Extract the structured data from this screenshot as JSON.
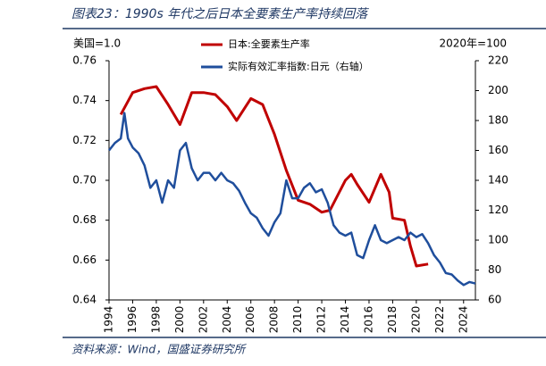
{
  "chart_data": {
    "type": "line",
    "title": "图表23：1990s 年代之后日本全要素生产率持续回落",
    "source": "资料来源：Wind，国盛证券研究所",
    "y_label": "美国=1.0",
    "y2_label": "2020年=100",
    "xlim": [
      1994,
      2025
    ],
    "xticks": [
      1994,
      1996,
      1998,
      2000,
      2002,
      2004,
      2006,
      2008,
      2010,
      2012,
      2014,
      2016,
      2018,
      2020,
      2022,
      2024
    ],
    "ylim": [
      0.64,
      0.76
    ],
    "yticks": [
      {
        "value": 0.64,
        "label": "0.64"
      },
      {
        "value": 0.66,
        "label": "0.66"
      },
      {
        "value": 0.68,
        "label": "0.68"
      },
      {
        "value": 0.7,
        "label": "0.70"
      },
      {
        "value": 0.72,
        "label": "0.72"
      },
      {
        "value": 0.74,
        "label": "0.74"
      },
      {
        "value": 0.76,
        "label": "0.76"
      }
    ],
    "y2lim": [
      60,
      220
    ],
    "y2ticks": [
      60,
      80,
      100,
      120,
      140,
      160,
      180,
      200,
      220
    ],
    "series": [
      {
        "name": "日本:全要素生产率",
        "color": "#c00000",
        "x": [
          1995,
          1996,
          1997,
          1998,
          1999,
          2000,
          2001,
          2002,
          2003,
          2004,
          2004.8,
          2006,
          2007,
          2008,
          2009,
          2010,
          2011,
          2012,
          2012.7,
          2014,
          2014.5,
          2015,
          2016,
          2017,
          2017.7,
          2018,
          2019,
          2019.5,
          2020,
          2021
        ],
        "values": [
          0.733,
          0.744,
          0.746,
          0.747,
          0.738,
          0.728,
          0.744,
          0.744,
          0.743,
          0.737,
          0.73,
          0.741,
          0.738,
          0.723,
          0.705,
          0.69,
          0.688,
          0.684,
          0.685,
          0.7,
          0.703,
          0.698,
          0.689,
          0.703,
          0.694,
          0.681,
          0.68,
          0.667,
          0.657,
          0.658
        ]
      },
      {
        "name": "实际有效汇率指数:日元（右轴）",
        "color": "#1f4e9c",
        "axis": "y2",
        "x": [
          1994,
          1994.5,
          1995,
          1995.3,
          1995.6,
          1996,
          1996.5,
          1997,
          1997.5,
          1998,
          1998.5,
          1999,
          1999.5,
          2000,
          2000.5,
          2001,
          2001.5,
          2002,
          2002.5,
          2003,
          2003.5,
          2004,
          2004.5,
          2005,
          2005.5,
          2006,
          2006.5,
          2007,
          2007.5,
          2008,
          2008.5,
          2009,
          2009.5,
          2010,
          2010.5,
          2011,
          2011.5,
          2012,
          2012.5,
          2013,
          2013.5,
          2014,
          2014.5,
          2015,
          2015.5,
          2016,
          2016.5,
          2017,
          2017.5,
          2018,
          2018.5,
          2019,
          2019.5,
          2020,
          2020.5,
          2021,
          2021.5,
          2022,
          2022.5,
          2023,
          2023.5,
          2024,
          2024.5,
          2025
        ],
        "values": [
          160,
          165,
          168,
          185,
          168,
          162,
          158,
          150,
          135,
          140,
          125,
          140,
          135,
          160,
          165,
          148,
          140,
          145,
          145,
          140,
          145,
          140,
          138,
          133,
          125,
          118,
          115,
          108,
          103,
          112,
          118,
          140,
          128,
          128,
          135,
          138,
          132,
          134,
          125,
          110,
          105,
          103,
          105,
          90,
          88,
          100,
          110,
          100,
          98,
          100,
          102,
          100,
          105,
          102,
          104,
          98,
          90,
          85,
          78,
          77,
          73,
          70,
          72,
          71
        ]
      }
    ],
    "legend": "upper center"
  }
}
